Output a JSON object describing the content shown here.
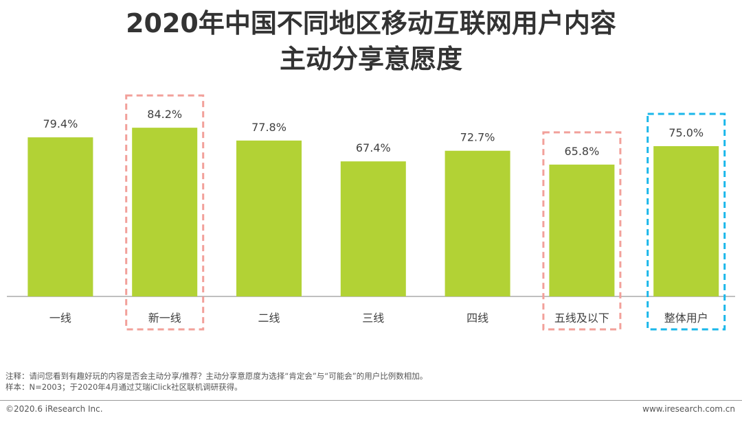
{
  "title": {
    "line1": "2020年中国不同地区移动互联网用户内容",
    "line2": "主动分享意愿度"
  },
  "chart_data": {
    "type": "bar",
    "categories": [
      "一线",
      "新一线",
      "二线",
      "三线",
      "四线",
      "五线及以下",
      "整体用户"
    ],
    "values": [
      79.4,
      84.2,
      77.8,
      67.4,
      72.7,
      65.8,
      75.0
    ],
    "value_labels": [
      "79.4%",
      "84.2%",
      "77.8%",
      "67.4%",
      "72.7%",
      "65.8%",
      "75.0%"
    ],
    "unit": "%",
    "ylim": [
      0,
      100
    ],
    "bar_color": "#b2d235",
    "grid": false,
    "highlights": [
      {
        "category": "新一线",
        "color": "#f2a09a",
        "style": "dashed"
      },
      {
        "category": "五线及以下",
        "color": "#f2a09a",
        "style": "dashed"
      },
      {
        "category": "整体用户",
        "color": "#1ab7ea",
        "style": "dashed"
      }
    ]
  },
  "notes": {
    "line1": "注释：请问您看到有趣好玩的内容是否会主动分享/推荐？主动分享意愿度为选择“肯定会”与“可能会”的用户比例数相加。",
    "line2": "样本：N=2003；于2020年4月通过艾瑞iClick社区联机调研获得。"
  },
  "footer": {
    "left": "©2020.6 iResearch Inc.",
    "right": "www.iresearch.com.cn"
  }
}
